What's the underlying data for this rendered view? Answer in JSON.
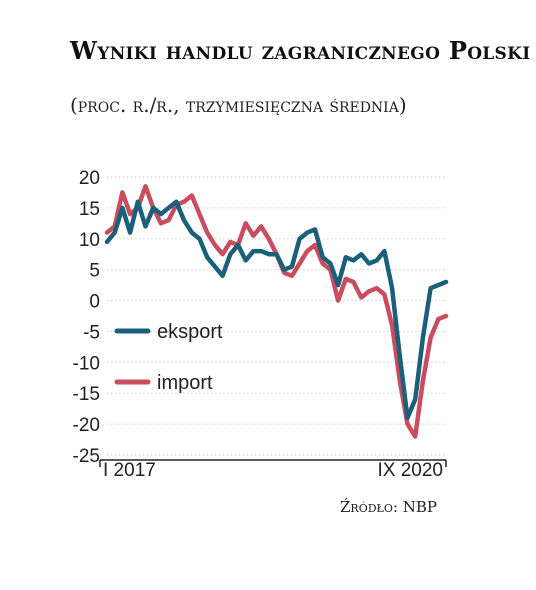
{
  "chart_data": {
    "type": "line",
    "title": "Wyniki handlu zagranicznego Polski",
    "subtitle": "(proc. r./r., trzymiesięczna średnia)",
    "source": "Źródło: NBP",
    "ylim": [
      -25,
      20
    ],
    "yticks": [
      "20",
      "15",
      "10",
      "5",
      "0",
      "-5",
      "-10",
      "-15",
      "-20",
      "-25"
    ],
    "ytick_values": [
      20,
      15,
      10,
      5,
      0,
      -5,
      -10,
      -15,
      -20,
      -25
    ],
    "x_tick_labels": [
      "I 2017",
      "IX 2020"
    ],
    "x": [
      "2017-01",
      "2017-02",
      "2017-03",
      "2017-04",
      "2017-05",
      "2017-06",
      "2017-07",
      "2017-08",
      "2017-09",
      "2017-10",
      "2017-11",
      "2017-12",
      "2018-01",
      "2018-02",
      "2018-03",
      "2018-04",
      "2018-05",
      "2018-06",
      "2018-07",
      "2018-08",
      "2018-09",
      "2018-10",
      "2018-11",
      "2018-12",
      "2019-01",
      "2019-02",
      "2019-03",
      "2019-04",
      "2019-05",
      "2019-06",
      "2019-07",
      "2019-08",
      "2019-09",
      "2019-10",
      "2019-11",
      "2019-12",
      "2020-01",
      "2020-02",
      "2020-03",
      "2020-04",
      "2020-05",
      "2020-06",
      "2020-07",
      "2020-08",
      "2020-09"
    ],
    "series": [
      {
        "name": "eksport",
        "color": "#1c5f7a",
        "values": [
          9.5,
          11,
          15,
          11,
          16,
          12,
          15,
          14,
          15,
          16,
          13,
          11,
          10,
          7,
          5.5,
          4,
          7.5,
          9,
          6.5,
          8,
          8,
          7.5,
          7.5,
          5,
          5.5,
          10,
          11,
          11.5,
          7,
          6,
          2.5,
          7,
          6.5,
          7.5,
          6,
          6.5,
          8,
          2,
          -9,
          -19,
          -16,
          -6,
          2,
          2.5,
          3
        ]
      },
      {
        "name": "import",
        "color": "#c94d5e",
        "values": [
          11,
          12,
          17.5,
          14,
          15,
          18.5,
          15,
          12.5,
          13,
          15.5,
          16,
          17,
          14,
          11,
          9,
          7.5,
          9.5,
          9,
          12.5,
          10.5,
          12,
          10,
          7.5,
          4.5,
          4,
          6,
          8,
          9,
          6,
          5,
          0,
          3.5,
          3,
          0.5,
          1.5,
          2,
          1,
          -4,
          -13,
          -20,
          -22,
          -13,
          -6,
          -3,
          -2.5
        ]
      }
    ],
    "legend": {
      "placement": "left-middle",
      "items": [
        "eksport",
        "import"
      ]
    }
  }
}
